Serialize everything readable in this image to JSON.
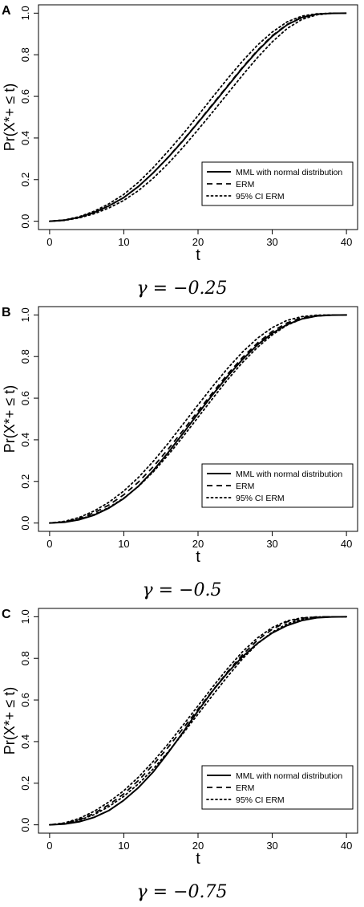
{
  "chart_data": [
    {
      "type": "line",
      "panel_label": "A",
      "xlabel": "t",
      "ylabel": "Pr(X*+ ≤ t)",
      "xlim": [
        -1.5,
        41.5
      ],
      "ylim": [
        -0.04,
        1.04
      ],
      "x_ticks": [
        0,
        10,
        20,
        30,
        40
      ],
      "y_ticks": [
        0.0,
        0.2,
        0.4,
        0.6,
        0.8,
        1.0
      ],
      "x_tick_labels": [
        "0",
        "10",
        "20",
        "30",
        "40"
      ],
      "y_tick_labels": [
        "0.0",
        "0.2",
        "0.4",
        "0.6",
        "0.8",
        "1.0"
      ],
      "legend": {
        "position": "bottom-right",
        "entries": [
          "MML with normal distribution",
          "ERM",
          "95% CI ERM"
        ]
      },
      "caption": "γ = −0.25",
      "x": [
        0,
        2,
        4,
        6,
        8,
        10,
        12,
        14,
        16,
        18,
        20,
        22,
        24,
        26,
        28,
        30,
        32,
        34,
        36,
        38,
        40
      ],
      "series": [
        {
          "name": "MML with normal distribution",
          "style": "solid",
          "values": [
            0.0,
            0.005,
            0.019,
            0.042,
            0.074,
            0.114,
            0.168,
            0.234,
            0.308,
            0.388,
            0.474,
            0.561,
            0.649,
            0.737,
            0.818,
            0.889,
            0.944,
            0.979,
            0.995,
            0.999,
            1.0
          ]
        },
        {
          "name": "ERM",
          "style": "dashed",
          "values": [
            0.0,
            0.005,
            0.019,
            0.042,
            0.074,
            0.114,
            0.168,
            0.234,
            0.309,
            0.39,
            0.476,
            0.564,
            0.652,
            0.74,
            0.821,
            0.892,
            0.946,
            0.98,
            0.995,
            0.999,
            1.0
          ]
        },
        {
          "name": "95% CI ERM (upper)",
          "style": "dotted",
          "values": [
            0.0,
            0.006,
            0.022,
            0.048,
            0.084,
            0.129,
            0.188,
            0.259,
            0.338,
            0.42,
            0.508,
            0.598,
            0.686,
            0.77,
            0.846,
            0.909,
            0.958,
            0.986,
            0.997,
            1.0,
            1.0
          ]
        },
        {
          "name": "95% CI ERM (lower)",
          "style": "dotted",
          "values": [
            0.0,
            0.004,
            0.016,
            0.036,
            0.064,
            0.1,
            0.148,
            0.208,
            0.278,
            0.356,
            0.44,
            0.526,
            0.614,
            0.702,
            0.786,
            0.862,
            0.926,
            0.97,
            0.992,
            0.999,
            1.0
          ]
        }
      ]
    },
    {
      "type": "line",
      "panel_label": "B",
      "xlabel": "t",
      "ylabel": "Pr(X*+ ≤ t)",
      "xlim": [
        -1.5,
        41.5
      ],
      "ylim": [
        -0.04,
        1.04
      ],
      "x_ticks": [
        0,
        10,
        20,
        30,
        40
      ],
      "y_ticks": [
        0.0,
        0.2,
        0.4,
        0.6,
        0.8,
        1.0
      ],
      "x_tick_labels": [
        "0",
        "10",
        "20",
        "30",
        "40"
      ],
      "y_tick_labels": [
        "0.0",
        "0.2",
        "0.4",
        "0.6",
        "0.8",
        "1.0"
      ],
      "legend": {
        "position": "bottom-right",
        "entries": [
          "MML with normal distribution",
          "ERM",
          "95% CI ERM"
        ]
      },
      "caption": "γ = −0.5",
      "x": [
        0,
        2,
        4,
        6,
        8,
        10,
        12,
        14,
        16,
        18,
        20,
        22,
        24,
        26,
        28,
        30,
        32,
        34,
        36,
        38,
        40
      ],
      "series": [
        {
          "name": "MML with normal distribution",
          "style": "solid",
          "values": [
            0.0,
            0.004,
            0.016,
            0.038,
            0.072,
            0.118,
            0.178,
            0.254,
            0.34,
            0.432,
            0.526,
            0.618,
            0.706,
            0.786,
            0.856,
            0.912,
            0.954,
            0.981,
            0.995,
            0.999,
            1.0
          ]
        },
        {
          "name": "ERM",
          "style": "dashed",
          "values": [
            0.0,
            0.006,
            0.022,
            0.049,
            0.087,
            0.136,
            0.198,
            0.272,
            0.356,
            0.446,
            0.538,
            0.628,
            0.716,
            0.796,
            0.865,
            0.921,
            0.962,
            0.987,
            0.997,
            1.0,
            1.0
          ]
        },
        {
          "name": "95% CI ERM (upper)",
          "style": "dotted",
          "values": [
            0.0,
            0.008,
            0.027,
            0.058,
            0.1,
            0.154,
            0.22,
            0.298,
            0.384,
            0.476,
            0.568,
            0.658,
            0.744,
            0.822,
            0.888,
            0.939,
            0.974,
            0.992,
            0.999,
            1.0,
            1.0
          ]
        },
        {
          "name": "95% CI ERM (lower)",
          "style": "dotted",
          "values": [
            0.0,
            0.005,
            0.018,
            0.041,
            0.075,
            0.12,
            0.177,
            0.247,
            0.328,
            0.416,
            0.508,
            0.6,
            0.69,
            0.772,
            0.844,
            0.904,
            0.951,
            0.981,
            0.995,
            0.999,
            1.0
          ]
        }
      ]
    },
    {
      "type": "line",
      "panel_label": "C",
      "xlabel": "t",
      "ylabel": "Pr(X*+ ≤ t)",
      "xlim": [
        -1.5,
        41.5
      ],
      "ylim": [
        -0.04,
        1.04
      ],
      "x_ticks": [
        0,
        10,
        20,
        30,
        40
      ],
      "y_ticks": [
        0.0,
        0.2,
        0.4,
        0.6,
        0.8,
        1.0
      ],
      "x_tick_labels": [
        "0",
        "10",
        "20",
        "30",
        "40"
      ],
      "y_tick_labels": [
        "0.0",
        "0.2",
        "0.4",
        "0.6",
        "0.8",
        "1.0"
      ],
      "legend": {
        "position": "bottom-right",
        "entries": [
          "MML with normal distribution",
          "ERM",
          "95% CI ERM"
        ]
      },
      "caption": "γ = −0.75",
      "x": [
        0,
        2,
        4,
        6,
        8,
        10,
        12,
        14,
        16,
        18,
        20,
        22,
        24,
        26,
        28,
        30,
        32,
        34,
        36,
        38,
        40
      ],
      "series": [
        {
          "name": "MML with normal distribution",
          "style": "solid",
          "values": [
            0.0,
            0.004,
            0.015,
            0.036,
            0.069,
            0.118,
            0.18,
            0.256,
            0.348,
            0.446,
            0.548,
            0.645,
            0.732,
            0.808,
            0.872,
            0.922,
            0.958,
            0.982,
            0.995,
            0.999,
            1.0
          ]
        },
        {
          "name": "ERM",
          "style": "dashed",
          "values": [
            0.0,
            0.007,
            0.025,
            0.055,
            0.097,
            0.149,
            0.214,
            0.29,
            0.374,
            0.464,
            0.556,
            0.647,
            0.736,
            0.818,
            0.887,
            0.94,
            0.976,
            0.993,
            0.999,
            1.0,
            1.0
          ]
        },
        {
          "name": "95% CI ERM (upper)",
          "style": "dotted",
          "values": [
            0.0,
            0.009,
            0.031,
            0.065,
            0.11,
            0.164,
            0.23,
            0.306,
            0.39,
            0.48,
            0.572,
            0.664,
            0.752,
            0.832,
            0.898,
            0.948,
            0.98,
            0.995,
            0.999,
            1.0,
            1.0
          ]
        },
        {
          "name": "95% CI ERM (lower)",
          "style": "dotted",
          "values": [
            0.0,
            0.006,
            0.022,
            0.049,
            0.088,
            0.137,
            0.198,
            0.27,
            0.352,
            0.44,
            0.532,
            0.624,
            0.714,
            0.798,
            0.87,
            0.926,
            0.966,
            0.988,
            0.997,
            1.0,
            1.0
          ]
        }
      ]
    }
  ]
}
